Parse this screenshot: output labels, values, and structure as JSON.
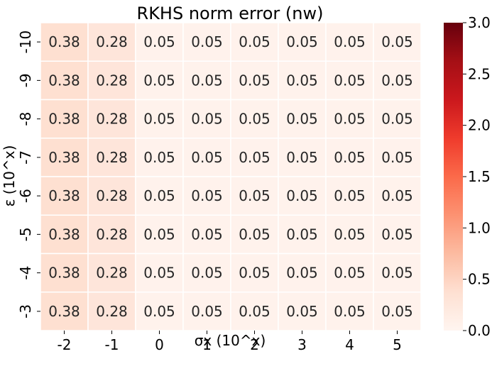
{
  "chart_data": {
    "type": "heatmap",
    "title": "RKHS norm error (nw)",
    "xlabel": "σx (10^x)",
    "ylabel": "ε (10^x)",
    "x_categories": [
      "-2",
      "-1",
      "0",
      "1",
      "2",
      "3",
      "4",
      "5"
    ],
    "y_categories": [
      "-10",
      "-9",
      "-8",
      "-7",
      "-6",
      "-5",
      "-4",
      "-3"
    ],
    "values": [
      [
        0.38,
        0.28,
        0.05,
        0.05,
        0.05,
        0.05,
        0.05,
        0.05
      ],
      [
        0.38,
        0.28,
        0.05,
        0.05,
        0.05,
        0.05,
        0.05,
        0.05
      ],
      [
        0.38,
        0.28,
        0.05,
        0.05,
        0.05,
        0.05,
        0.05,
        0.05
      ],
      [
        0.38,
        0.28,
        0.05,
        0.05,
        0.05,
        0.05,
        0.05,
        0.05
      ],
      [
        0.38,
        0.28,
        0.05,
        0.05,
        0.05,
        0.05,
        0.05,
        0.05
      ],
      [
        0.38,
        0.28,
        0.05,
        0.05,
        0.05,
        0.05,
        0.05,
        0.05
      ],
      [
        0.38,
        0.28,
        0.05,
        0.05,
        0.05,
        0.05,
        0.05,
        0.05
      ],
      [
        0.38,
        0.28,
        0.05,
        0.05,
        0.05,
        0.05,
        0.05,
        0.05
      ]
    ],
    "colorbar": {
      "range": [
        0.0,
        3.0
      ],
      "ticks": [
        "0.0",
        "0.5",
        "1.0",
        "1.5",
        "2.0",
        "2.5",
        "3.0"
      ],
      "colormap": "Reds",
      "colors": [
        "#fff5f0",
        "#fee0d2",
        "#fcbba1",
        "#fc9272",
        "#fb6a4a",
        "#ef3b2c",
        "#cb181d",
        "#a50f15",
        "#67000d"
      ]
    }
  }
}
